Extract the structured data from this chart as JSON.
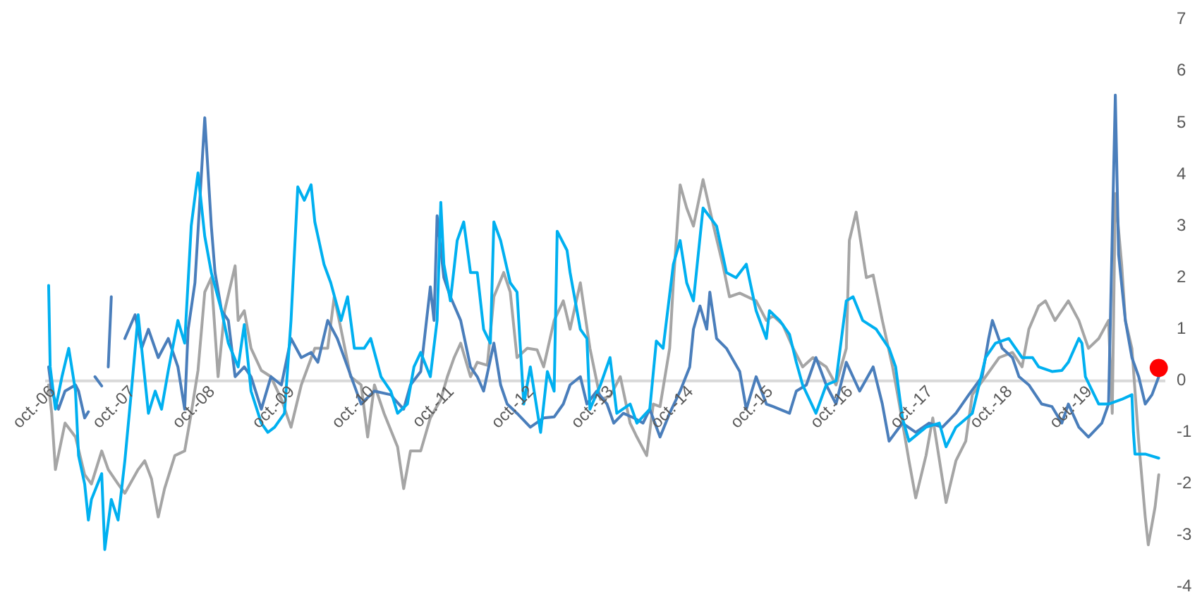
{
  "chart_data": {
    "type": "line",
    "xlim": [
      "2006-09-15",
      "2020-10-01"
    ],
    "ylim": [
      -4,
      7
    ],
    "xticks": [
      {
        "value": "2006-10-01",
        "label": "oct.-06"
      },
      {
        "value": "2007-10-01",
        "label": "oct.-07"
      },
      {
        "value": "2008-10-01",
        "label": "oct.-08"
      },
      {
        "value": "2009-10-01",
        "label": "oct.-09"
      },
      {
        "value": "2010-10-01",
        "label": "oct.-10"
      },
      {
        "value": "2011-10-01",
        "label": "oct.-11"
      },
      {
        "value": "2012-10-01",
        "label": "oct.-12"
      },
      {
        "value": "2013-10-01",
        "label": "oct.-13"
      },
      {
        "value": "2014-10-01",
        "label": "oct.-14"
      },
      {
        "value": "2015-10-01",
        "label": "oct.-15"
      },
      {
        "value": "2016-10-01",
        "label": "oct.-16"
      },
      {
        "value": "2017-10-01",
        "label": "oct.-17"
      },
      {
        "value": "2018-10-01",
        "label": "oct.-18"
      },
      {
        "value": "2019-10-01",
        "label": "oct.-19"
      }
    ],
    "yticks": [
      -4,
      -3,
      -2,
      -1,
      0,
      1,
      2,
      3,
      4,
      5,
      6,
      7
    ],
    "grid": false,
    "line_style": "solid",
    "series": [
      {
        "color": "#a5a5a5",
        "x": [
          "2006-10-01",
          "2006-10-15",
          "2006-11-01",
          "2006-12-15",
          "2007-02-01",
          "2007-03-15",
          "2007-04-15",
          "2007-06-01",
          "2007-07-01",
          "2007-08-15",
          "2007-09-15",
          "2007-11-15",
          "2007-12-15",
          "2008-01-15",
          "2008-02-15",
          "2008-03-15",
          "2008-05-01",
          "2008-06-15",
          "2008-07-15",
          "2008-08-15",
          "2008-09-15",
          "2008-10-15",
          "2008-11-15",
          "2008-12-15",
          "2009-02-01",
          "2009-02-15",
          "2009-03-15",
          "2009-04-15",
          "2009-06-01",
          "2009-07-15",
          "2009-09-01",
          "2009-10-15",
          "2009-12-01",
          "2010-02-01",
          "2010-04-01",
          "2010-05-01",
          "2010-06-01",
          "2010-07-15",
          "2010-09-01",
          "2010-10-01",
          "2010-11-01",
          "2010-12-15",
          "2011-02-15",
          "2011-03-15",
          "2011-04-15",
          "2011-06-01",
          "2011-07-15",
          "2011-09-01",
          "2011-10-01",
          "2011-11-01",
          "2011-12-01",
          "2012-01-15",
          "2012-02-15",
          "2012-04-01",
          "2012-05-01",
          "2012-06-15",
          "2012-07-15",
          "2012-08-15",
          "2012-10-01",
          "2012-11-15",
          "2012-12-15",
          "2013-02-01",
          "2013-03-15",
          "2013-04-15",
          "2013-06-01",
          "2013-07-15",
          "2013-09-01",
          "2013-10-15",
          "2013-12-01",
          "2014-01-15",
          "2014-02-15",
          "2014-04-01",
          "2014-05-01",
          "2014-06-01",
          "2014-07-15",
          "2014-08-01",
          "2014-09-01",
          "2014-10-01",
          "2014-11-01",
          "2014-12-15",
          "2015-02-01",
          "2015-03-15",
          "2015-04-15",
          "2015-06-01",
          "2015-08-15",
          "2015-10-01",
          "2015-11-01",
          "2015-12-15",
          "2016-02-01",
          "2016-03-15",
          "2016-05-01",
          "2016-07-01",
          "2016-08-15",
          "2016-10-01",
          "2016-10-15",
          "2016-11-15",
          "2017-01-01",
          "2017-02-01",
          "2017-03-15",
          "2017-05-01",
          "2017-06-01",
          "2017-07-15",
          "2017-08-15",
          "2017-10-01",
          "2017-11-01",
          "2018-01-01",
          "2018-02-15",
          "2018-04-01",
          "2018-05-01",
          "2018-07-01",
          "2018-09-01",
          "2018-11-01",
          "2018-12-15",
          "2019-01-15",
          "2019-03-01",
          "2019-04-01",
          "2019-05-15",
          "2019-07-15",
          "2019-09-01",
          "2019-10-15",
          "2019-12-01",
          "2020-01-15",
          "2020-02-01",
          "2020-02-15",
          "2020-03-15",
          "2020-04-01",
          "2020-05-01",
          "2020-06-01",
          "2020-07-01",
          "2020-07-15",
          "2020-08-15",
          "2020-09-01"
        ],
        "values": [
          -0.08,
          -0.63,
          -1.72,
          -0.82,
          -1.09,
          -1.82,
          -2.0,
          -1.36,
          -1.72,
          -2.0,
          -2.18,
          -1.72,
          -1.55,
          -1.9,
          -2.64,
          -2.09,
          -1.45,
          -1.36,
          -0.63,
          0.2,
          1.72,
          2.0,
          0.08,
          1.36,
          2.23,
          1.17,
          1.36,
          0.63,
          0.2,
          0.08,
          -0.36,
          -0.9,
          -0.08,
          0.63,
          0.63,
          1.63,
          1.0,
          0.08,
          -0.08,
          -1.09,
          -0.08,
          -0.63,
          -1.28,
          -2.09,
          -1.36,
          -1.36,
          -0.72,
          -0.36,
          0.08,
          0.45,
          0.73,
          0.08,
          0.36,
          0.3,
          1.63,
          2.1,
          1.72,
          0.45,
          0.63,
          0.6,
          0.27,
          1.17,
          1.55,
          1.0,
          1.9,
          0.63,
          -0.36,
          -0.3,
          0.08,
          -0.82,
          -1.09,
          -1.45,
          -0.45,
          -0.5,
          0.63,
          1.9,
          3.8,
          3.35,
          3.0,
          3.9,
          3.0,
          2.26,
          1.63,
          1.7,
          1.55,
          1.17,
          1.26,
          1.09,
          0.63,
          0.27,
          0.45,
          0.27,
          -0.08,
          0.63,
          2.72,
          3.27,
          2.0,
          2.05,
          1.17,
          0.27,
          -0.45,
          -1.55,
          -2.27,
          -1.45,
          -0.72,
          -2.36,
          -1.55,
          -1.17,
          -0.27,
          0.08,
          0.45,
          0.55,
          0.27,
          1.0,
          1.45,
          1.55,
          1.17,
          1.55,
          1.17,
          0.63,
          0.82,
          1.17,
          -0.63,
          3.63,
          2.26,
          1.17,
          0.63,
          -1.17,
          -2.64,
          -3.18,
          -2.45,
          -1.82
        ]
      },
      {
        "color": "#4a7ebb",
        "x": [
          "2006-10-01",
          "2006-10-15",
          "2006-11-15",
          "2006-12-15",
          "2007-02-01",
          "2007-02-15",
          "2007-03-15",
          "2007-04-01",
          null,
          "2007-05-01",
          "2007-06-01",
          null,
          "2007-07-01",
          "2007-07-15",
          null,
          "2007-09-15",
          "2007-11-01",
          "2007-12-01",
          "2008-01-01",
          "2008-02-15",
          "2008-04-01",
          "2008-05-15",
          "2008-06-15",
          "2008-07-01",
          "2008-08-01",
          "2008-09-15",
          "2008-10-15",
          "2008-11-01",
          "2008-12-01",
          "2009-01-01",
          "2009-02-01",
          "2009-03-15",
          "2009-04-15",
          "2009-06-01",
          "2009-07-15",
          "2009-09-01",
          "2009-10-15",
          "2009-12-01",
          "2010-01-15",
          "2010-02-15",
          "2010-04-01",
          "2010-05-15",
          "2010-07-01",
          "2010-09-01",
          "2010-11-01",
          "2011-01-15",
          "2011-02-01",
          "2011-03-15",
          "2011-04-15",
          "2011-06-01",
          "2011-07-15",
          "2011-08-01",
          "2011-08-15",
          "2011-09-15",
          "2011-10-15",
          "2011-12-01",
          "2012-01-15",
          "2012-02-15",
          "2012-03-15",
          "2012-05-01",
          "2012-06-01",
          "2012-07-01",
          "2012-08-15",
          "2012-10-15",
          "2012-12-15",
          "2013-02-01",
          "2013-03-15",
          "2013-04-15",
          "2013-06-01",
          "2013-07-01",
          "2013-08-15",
          "2013-10-01",
          "2013-11-01",
          "2013-12-15",
          "2014-02-01",
          "2014-03-15",
          "2014-04-15",
          "2014-06-01",
          "2014-07-15",
          "2014-09-01",
          "2014-10-15",
          "2014-11-01",
          "2014-12-01",
          "2015-01-01",
          "2015-01-15",
          "2015-02-15",
          "2015-04-01",
          "2015-06-01",
          "2015-07-01",
          "2015-08-15",
          "2015-10-01",
          "2015-11-01",
          "2016-01-15",
          "2016-02-15",
          "2016-04-01",
          "2016-05-15",
          "2016-07-01",
          "2016-08-15",
          "2016-10-01",
          "2016-12-01",
          "2017-02-01",
          "2017-03-15",
          "2017-04-15",
          "2017-06-15",
          "2017-08-15",
          "2017-10-15",
          "2017-12-15",
          "2018-02-15",
          "2018-04-15",
          "2018-06-15",
          "2018-07-15",
          "2018-08-01",
          "2018-09-15",
          "2018-11-01",
          "2018-12-01",
          "2019-01-15",
          "2019-03-15",
          "2019-05-01",
          "2019-06-15",
          "2019-07-15",
          "2019-09-01",
          "2019-10-15",
          "2019-12-15",
          "2020-01-15",
          "2020-02-15",
          "2020-03-01",
          "2020-04-01",
          "2020-05-01",
          "2020-06-01",
          "2020-07-01",
          "2020-08-01",
          "2020-09-01"
        ],
        "values": [
          0.27,
          -0.2,
          -0.55,
          -0.2,
          -0.08,
          -0.2,
          -0.72,
          -0.6,
          null,
          0.08,
          -0.1,
          null,
          0.27,
          1.63,
          null,
          0.82,
          1.28,
          0.63,
          1.0,
          0.45,
          0.82,
          0.27,
          -0.55,
          1.0,
          1.9,
          5.1,
          3.0,
          2.1,
          1.36,
          1.17,
          0.08,
          0.27,
          0.08,
          -0.55,
          0.08,
          -0.08,
          0.82,
          0.45,
          0.55,
          0.36,
          1.17,
          0.82,
          0.27,
          -0.45,
          -0.2,
          -0.27,
          -0.36,
          -0.55,
          -0.08,
          0.18,
          1.82,
          1.17,
          3.2,
          2.0,
          1.63,
          1.17,
          0.27,
          0.08,
          -0.2,
          0.73,
          -0.08,
          -0.45,
          -0.63,
          -0.9,
          -0.72,
          -0.7,
          -0.45,
          -0.08,
          0.08,
          -0.45,
          -0.2,
          -0.45,
          -0.82,
          -0.63,
          -0.72,
          -0.82,
          -0.55,
          -1.09,
          -0.63,
          -0.2,
          0.27,
          1.0,
          1.45,
          1.0,
          1.72,
          0.82,
          0.63,
          0.18,
          -0.55,
          0.08,
          -0.45,
          -0.5,
          -0.63,
          -0.2,
          -0.08,
          0.45,
          -0.08,
          -0.45,
          0.36,
          -0.2,
          0.27,
          -0.45,
          -1.17,
          -0.82,
          -1.0,
          -0.82,
          -0.9,
          -0.63,
          -0.27,
          0.08,
          0.82,
          1.17,
          0.63,
          0.45,
          0.08,
          -0.08,
          -0.45,
          -0.5,
          -0.82,
          -0.45,
          -0.9,
          -1.09,
          -0.82,
          -0.45,
          5.54,
          2.45,
          1.17,
          0.45,
          0.08,
          -0.45,
          -0.27,
          0.08
        ]
      },
      {
        "color": "#00b0f0",
        "x": [
          "2006-10-01",
          "2006-10-08",
          "2006-11-01",
          "2006-12-01",
          "2007-01-01",
          "2007-02-01",
          "2007-02-15",
          "2007-03-15",
          "2007-04-01",
          "2007-04-15",
          "2007-06-01",
          "2007-06-15",
          "2007-07-15",
          "2007-08-15",
          "2007-09-15",
          "2007-10-15",
          "2007-11-15",
          "2007-12-01",
          "2008-01-01",
          "2008-02-01",
          "2008-03-01",
          "2008-04-01",
          "2008-05-15",
          "2008-06-15",
          "2008-07-15",
          "2008-08-15",
          "2008-09-15",
          "2008-10-15",
          "2008-12-01",
          "2009-01-01",
          "2009-02-15",
          "2009-03-15",
          "2009-04-15",
          "2009-06-01",
          "2009-07-01",
          "2009-08-01",
          "2009-09-15",
          "2009-10-15",
          "2009-11-15",
          "2009-12-15",
          "2010-01-15",
          "2010-02-01",
          "2010-03-15",
          "2010-04-15",
          "2010-06-01",
          "2010-07-01",
          "2010-08-01",
          "2010-09-15",
          "2010-10-15",
          "2010-12-01",
          "2011-01-15",
          "2011-02-15",
          "2011-04-01",
          "2011-05-01",
          "2011-06-01",
          "2011-07-15",
          "2011-08-15",
          "2011-09-01",
          "2011-09-15",
          "2011-10-15",
          "2011-11-15",
          "2011-12-15",
          "2012-01-15",
          "2012-02-15",
          "2012-03-15",
          "2012-04-15",
          "2012-05-01",
          "2012-06-01",
          "2012-07-15",
          "2012-08-15",
          "2012-09-15",
          "2012-10-15",
          "2012-12-01",
          "2013-01-01",
          "2013-02-01",
          "2013-02-15",
          "2013-04-01",
          "2013-04-15",
          "2013-06-01",
          "2013-07-01",
          "2013-07-15",
          "2013-09-01",
          "2013-10-15",
          "2013-11-15",
          "2014-01-15",
          "2014-02-15",
          "2014-04-15",
          "2014-05-15",
          "2014-06-15",
          "2014-08-01",
          "2014-09-01",
          "2014-10-01",
          "2014-11-01",
          "2014-12-15",
          "2015-02-15",
          "2015-04-01",
          "2015-05-15",
          "2015-07-01",
          "2015-08-15",
          "2015-10-01",
          "2015-10-15",
          "2015-12-01",
          "2016-01-15",
          "2016-02-15",
          "2016-03-15",
          "2016-05-15",
          "2016-07-01",
          "2016-08-15",
          "2016-10-01",
          "2016-11-01",
          "2016-12-15",
          "2017-02-15",
          "2017-04-15",
          "2017-05-15",
          "2017-06-15",
          "2017-07-15",
          "2017-10-01",
          "2017-12-01",
          "2018-01-01",
          "2018-02-15",
          "2018-05-01",
          "2018-07-01",
          "2018-08-15",
          "2018-10-15",
          "2018-12-15",
          "2019-02-01",
          "2019-03-01",
          "2019-05-01",
          "2019-06-15",
          "2019-07-15",
          "2019-09-01",
          "2019-09-15",
          "2019-10-01",
          "2019-12-01",
          "2020-01-15",
          "2020-03-15",
          "2020-05-01",
          "2020-05-08",
          "2020-05-15",
          "2020-07-01",
          "2020-09-01"
        ],
        "values": [
          1.85,
          0.27,
          -0.55,
          0.08,
          0.63,
          -0.2,
          -1.45,
          -2.0,
          -2.7,
          -2.3,
          -1.8,
          -3.27,
          -2.3,
          -2.7,
          -1.55,
          -0.2,
          1.28,
          0.63,
          -0.63,
          -0.2,
          -0.55,
          0.2,
          1.17,
          0.73,
          3.0,
          4.03,
          2.8,
          2.1,
          1.36,
          0.73,
          0.27,
          1.09,
          -0.2,
          -0.82,
          -1.0,
          -0.9,
          -0.63,
          1.17,
          3.76,
          3.5,
          3.8,
          3.08,
          2.26,
          1.9,
          1.17,
          1.63,
          0.63,
          0.63,
          0.82,
          0.08,
          -0.2,
          -0.63,
          -0.45,
          0.27,
          0.55,
          0.08,
          1.17,
          3.46,
          2.26,
          1.55,
          2.72,
          3.08,
          2.1,
          2.1,
          1.0,
          0.73,
          3.08,
          2.72,
          1.9,
          1.72,
          -0.45,
          0.27,
          -1.0,
          0.18,
          -0.2,
          2.9,
          2.53,
          2.1,
          1.0,
          0.82,
          -0.55,
          -0.08,
          0.45,
          -0.63,
          -0.45,
          -0.82,
          -0.55,
          0.77,
          0.63,
          2.26,
          2.72,
          1.9,
          1.55,
          3.35,
          3.0,
          2.1,
          2.0,
          2.26,
          1.36,
          0.82,
          1.36,
          1.17,
          0.9,
          0.36,
          -0.08,
          -0.63,
          -0.08,
          0,
          1.55,
          1.63,
          1.17,
          1.0,
          0.63,
          0.27,
          -0.72,
          -1.17,
          -0.9,
          -0.82,
          -1.28,
          -0.9,
          -0.63,
          0.45,
          0.73,
          0.82,
          0.45,
          0.45,
          0.27,
          0.18,
          0.2,
          0.36,
          0.82,
          0.73,
          0.08,
          -0.45,
          -0.45,
          -0.36,
          -0.27,
          -1.0,
          -1.42,
          -1.42,
          -1.5
        ]
      },
      {
        "type": "scatter",
        "color": "#ff0000",
        "marker": "circle",
        "x": [
          "2020-09-01"
        ],
        "values": [
          0.25
        ]
      }
    ]
  }
}
